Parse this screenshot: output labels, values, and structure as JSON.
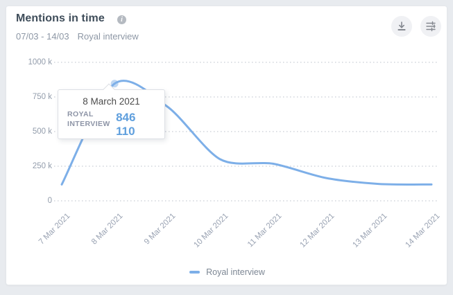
{
  "header": {
    "title": "Mentions in time",
    "date_range": "07/03 - 14/03",
    "topic": "Royal interview"
  },
  "toolbar": {
    "download_icon": "download-icon",
    "filters_icon": "sliders-icon"
  },
  "tooltip": {
    "date": "8 March 2021",
    "series": "ROYAL INTERVIEW",
    "value": "846 110"
  },
  "legend": {
    "label": "Royal interview"
  },
  "colors": {
    "line": "#7dafe8",
    "marker": "#a9caee",
    "grid": "#c8ccd3",
    "value_text": "#5f9fdd"
  },
  "chart_data": {
    "type": "line",
    "title": "Mentions in time",
    "x": [
      "7 Mar 2021",
      "8 Mar 2021",
      "9 Mar 2021",
      "10 Mar 2021",
      "11 Mar 2021",
      "12 Mar 2021",
      "13 Mar 2021",
      "14 Mar 2021"
    ],
    "series": [
      {
        "name": "Royal interview",
        "values": [
          118000,
          846110,
          680000,
          300000,
          268000,
          165000,
          122000,
          118000
        ]
      }
    ],
    "yticks": [
      "1000 k",
      "750 k",
      "500 k",
      "250 k",
      "0"
    ],
    "ytick_values": [
      1000000,
      750000,
      500000,
      250000,
      0
    ],
    "ylim": [
      0,
      1000000
    ],
    "grid": "horizontal-dotted",
    "legend_position": "bottom",
    "highlight": {
      "x": "8 Mar 2021",
      "value": 846110,
      "display": "846 110"
    }
  }
}
